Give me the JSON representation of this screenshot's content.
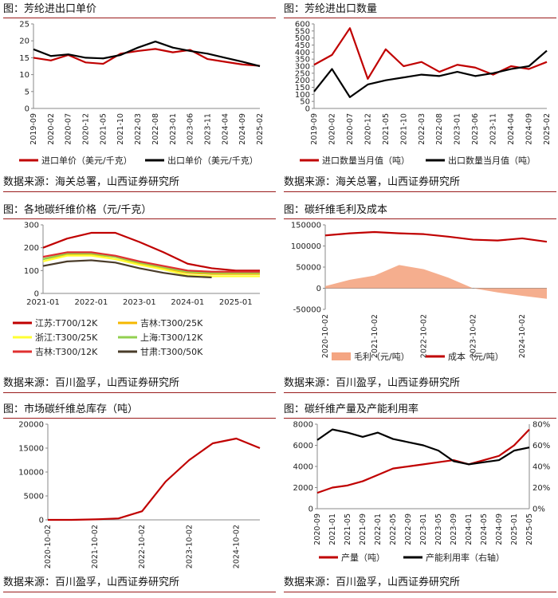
{
  "panels": [
    {
      "title": "图：芳纶进出口单价",
      "source": "数据来源：海关总署，山西证券研究所"
    },
    {
      "title": "图：芳纶进出口数量",
      "source": "数据来源：海关总署，山西证券研究所"
    },
    {
      "title": "图：各地碳纤维价格（元/千克）",
      "source": "数据来源：百川盈孚，山西证券研究所"
    },
    {
      "title": "图：碳纤维毛利及成本",
      "source": "数据来源：百川盈孚，山西证券研究所"
    },
    {
      "title": "图：市场碳纤维总库存（吨）",
      "source": "数据来源：百川盈孚，山西证券研究所"
    },
    {
      "title": "图：碳纤维产量及产能利用率",
      "source": "数据来源：百川盈孚，山西证券研究所"
    }
  ],
  "chart_data": [
    {
      "type": "line",
      "x": [
        "2019-09",
        "2020-02",
        "2020-07",
        "2020-12",
        "2021-05",
        "2021-10",
        "2022-03",
        "2022-08",
        "2023-01",
        "2023-06",
        "2023-11",
        "2024-04",
        "2024-09",
        "2025-02"
      ],
      "ylim": [
        0,
        25
      ],
      "yticks": [
        0,
        5,
        10,
        15,
        20,
        25
      ],
      "series": [
        {
          "name": "进口单价（美元/千克）",
          "color": "#c00000",
          "values": [
            15.0,
            14.2,
            15.8,
            13.6,
            13.2,
            16.2,
            17.0,
            17.6,
            16.6,
            17.3,
            14.6,
            13.8,
            13.0,
            12.6
          ]
        },
        {
          "name": "出口单价（美元/千克）",
          "color": "#000000",
          "values": [
            17.5,
            15.5,
            16.0,
            15.0,
            14.8,
            15.8,
            18.0,
            19.8,
            18.0,
            17.0,
            16.2,
            15.0,
            13.8,
            12.5
          ]
        }
      ],
      "legend": "bottom"
    },
    {
      "type": "line",
      "x": [
        "2019-09",
        "2020-02",
        "2020-07",
        "2020-12",
        "2021-05",
        "2021-10",
        "2022-03",
        "2022-08",
        "2023-01",
        "2023-06",
        "2023-11",
        "2024-04",
        "2024-09",
        "2025-02"
      ],
      "ylim": [
        0,
        600
      ],
      "yticks": [
        0,
        50,
        100,
        150,
        200,
        250,
        300,
        350,
        400,
        450,
        500,
        550,
        600
      ],
      "series": [
        {
          "name": "进口数量当月值（吨）",
          "color": "#c00000",
          "values": [
            310,
            380,
            570,
            210,
            420,
            300,
            330,
            260,
            310,
            290,
            240,
            300,
            280,
            330
          ]
        },
        {
          "name": "出口数量当月值（吨）",
          "color": "#000000",
          "values": [
            120,
            280,
            80,
            170,
            200,
            220,
            240,
            230,
            260,
            230,
            250,
            280,
            300,
            410
          ]
        }
      ],
      "legend": "bottom"
    },
    {
      "type": "line",
      "x": [
        "2021-01",
        "2021-07",
        "2022-01",
        "2022-07",
        "2023-01",
        "2023-07",
        "2024-01",
        "2024-07",
        "2025-01",
        "2025-05"
      ],
      "xticks": [
        "2021-01",
        "2022-01",
        "2023-01",
        "2024-01",
        "2025-01"
      ],
      "ylim": [
        0,
        300
      ],
      "yticks": [
        0,
        100,
        200,
        300
      ],
      "series": [
        {
          "name": "江苏:T700/12K",
          "color": "#c00000",
          "values": [
            200,
            240,
            265,
            265,
            225,
            180,
            130,
            110,
            100,
            100
          ]
        },
        {
          "name": "吉林:T300/25K",
          "color": "#f5b800",
          "values": [
            150,
            170,
            170,
            160,
            130,
            110,
            90,
            85,
            85,
            85
          ]
        },
        {
          "name": "浙江:T300/25K",
          "color": "#ffff33",
          "values": [
            140,
            165,
            165,
            150,
            125,
            105,
            80,
            75,
            75,
            75
          ]
        },
        {
          "name": "上海:T300/12K",
          "color": "#92d050",
          "values": [
            150,
            175,
            175,
            160,
            135,
            115,
            95,
            90,
            90,
            90
          ]
        },
        {
          "name": "吉林:T300/12K",
          "color": "#e03030",
          "values": [
            160,
            180,
            180,
            165,
            140,
            120,
            100,
            95,
            95,
            95
          ]
        },
        {
          "name": "甘肃:T300/50K",
          "color": "#4a3c2a",
          "values": [
            120,
            140,
            145,
            135,
            110,
            90,
            75,
            70,
            null,
            null
          ]
        }
      ],
      "legend": "bottom"
    },
    {
      "type": "area",
      "x": [
        "2020-10-02",
        "2021-04-02",
        "2021-10-02",
        "2022-04-02",
        "2022-10-02",
        "2023-04-02",
        "2023-10-02",
        "2024-04-02",
        "2024-10-02",
        "2025-04-02"
      ],
      "xticks": [
        "2020-10-02",
        "2021-10-02",
        "2022-10-02",
        "2023-10-02",
        "2024-10-02"
      ],
      "ylim": [
        -50000,
        150000
      ],
      "yticks": [
        -50000,
        0,
        50000,
        100000,
        150000
      ],
      "series": [
        {
          "name": "毛利（元/吨）",
          "color": "#f4a582",
          "kind": "area",
          "values": [
            5000,
            20000,
            30000,
            55000,
            45000,
            25000,
            0,
            -10000,
            -18000,
            -25000
          ]
        },
        {
          "name": "成本（元/吨）",
          "color": "#c00000",
          "kind": "line",
          "values": [
            125000,
            130000,
            133000,
            130000,
            128000,
            122000,
            115000,
            113000,
            118000,
            110000
          ]
        }
      ],
      "legend": "bottom"
    },
    {
      "type": "line",
      "x": [
        "2020-10-02",
        "2021-04-02",
        "2021-10-02",
        "2022-04-02",
        "2022-10-02",
        "2023-04-02",
        "2023-10-02",
        "2024-04-02",
        "2024-10-02",
        "2025-04-02"
      ],
      "xticks": [
        "2020-10-02",
        "2021-10-02",
        "2022-10-02",
        "2023-10-02",
        "2024-10-02"
      ],
      "ylim": [
        0,
        20000
      ],
      "yticks": [
        0,
        5000,
        10000,
        15000,
        20000
      ],
      "series": [
        {
          "name": "",
          "color": "#c00000",
          "values": [
            0,
            0,
            100,
            300,
            1800,
            8000,
            12500,
            16000,
            17000,
            15000
          ]
        }
      ]
    },
    {
      "type": "line",
      "x": [
        "2020-09",
        "2021-01",
        "2021-05",
        "2021-09",
        "2022-01",
        "2022-05",
        "2022-09",
        "2023-01",
        "2023-05",
        "2023-09",
        "2024-01",
        "2024-05",
        "2024-09",
        "2025-01",
        "2025-05"
      ],
      "ylim": [
        0,
        8000
      ],
      "yticks": [
        0,
        2000,
        4000,
        6000,
        8000
      ],
      "ylim_right": [
        0,
        80
      ],
      "yticks_right": [
        "0%",
        "20%",
        "40%",
        "60%",
        "80%"
      ],
      "series": [
        {
          "name": "产量（吨）",
          "color": "#c00000",
          "axis": "left",
          "values": [
            1500,
            2000,
            2200,
            2600,
            3200,
            3800,
            4000,
            4200,
            4400,
            4600,
            4200,
            4600,
            5000,
            6000,
            7500
          ]
        },
        {
          "name": "产能利用率（右轴）",
          "color": "#000000",
          "axis": "right",
          "values": [
            65,
            75,
            72,
            68,
            72,
            66,
            63,
            60,
            55,
            45,
            42,
            44,
            46,
            55,
            58
          ]
        }
      ],
      "legend": "bottom"
    }
  ]
}
